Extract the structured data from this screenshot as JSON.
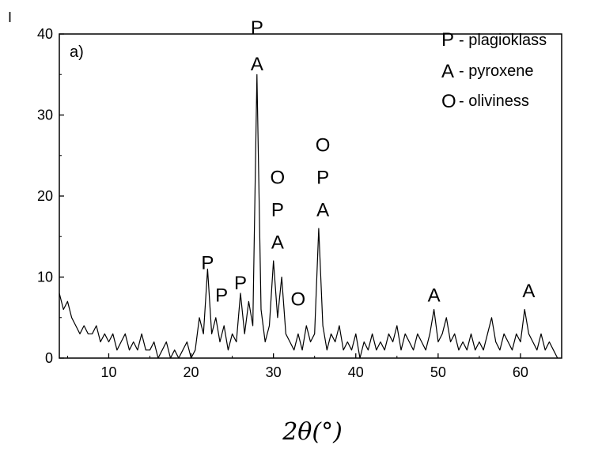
{
  "chart_data": {
    "type": "line",
    "panel_label": "a)",
    "ylabel": "I",
    "xlabel": "2θ(°)",
    "xlim": [
      4,
      65
    ],
    "ylim": [
      0,
      40
    ],
    "x_ticks": [
      10,
      20,
      30,
      40,
      50,
      60
    ],
    "y_ticks": [
      0,
      10,
      20,
      30,
      40
    ],
    "grid": false,
    "series_color": "#000000",
    "series": [
      {
        "x": [
          4.0,
          4.5,
          5.0,
          5.5,
          6.0,
          6.5,
          7.0,
          7.5,
          8.0,
          8.5,
          9.0,
          9.5,
          10.0,
          10.5,
          11.0,
          11.5,
          12.0,
          12.5,
          13.0,
          13.5,
          14.0,
          14.5,
          15.0,
          15.5,
          16.0,
          16.5,
          17.0,
          17.5,
          18.0,
          18.5,
          19.0,
          19.5,
          20.0,
          20.5,
          21.0,
          21.5,
          22.0,
          22.5,
          23.0,
          23.5,
          24.0,
          24.5,
          25.0,
          25.5,
          26.0,
          26.5,
          27.0,
          27.5,
          28.0,
          28.5,
          29.0,
          29.5,
          30.0,
          30.5,
          31.0,
          31.5,
          32.0,
          32.5,
          33.0,
          33.5,
          34.0,
          34.5,
          35.0,
          35.5,
          36.0,
          36.5,
          37.0,
          37.5,
          38.0,
          38.5,
          39.0,
          39.5,
          40.0,
          40.5,
          41.0,
          41.5,
          42.0,
          42.5,
          43.0,
          43.5,
          44.0,
          44.5,
          45.0,
          45.5,
          46.0,
          46.5,
          47.0,
          47.5,
          48.0,
          48.5,
          49.0,
          49.5,
          50.0,
          50.5,
          51.0,
          51.5,
          52.0,
          52.5,
          53.0,
          53.5,
          54.0,
          54.5,
          55.0,
          55.5,
          56.0,
          56.5,
          57.0,
          57.5,
          58.0,
          58.5,
          59.0,
          59.5,
          60.0,
          60.5,
          61.0,
          61.5,
          62.0,
          62.5,
          63.0,
          63.5,
          64.0,
          64.5
        ],
        "y": [
          8,
          6,
          7,
          5,
          4,
          3,
          4,
          3,
          3,
          4,
          2,
          3,
          2,
          3,
          1,
          2,
          3,
          1,
          2,
          1,
          3,
          1,
          1,
          2,
          0,
          1,
          2,
          0,
          1,
          0,
          1,
          2,
          0,
          1,
          5,
          3,
          11,
          3,
          5,
          2,
          4,
          1,
          3,
          2,
          8,
          3,
          7,
          4,
          35,
          6,
          2,
          4,
          12,
          5,
          10,
          3,
          2,
          1,
          3,
          1,
          4,
          2,
          3,
          16,
          4,
          1,
          3,
          2,
          4,
          1,
          2,
          1,
          3,
          0,
          2,
          1,
          3,
          1,
          2,
          1,
          3,
          2,
          4,
          1,
          3,
          2,
          1,
          3,
          2,
          1,
          3,
          6,
          2,
          3,
          5,
          2,
          3,
          1,
          2,
          1,
          3,
          1,
          2,
          1,
          3,
          5,
          2,
          1,
          3,
          2,
          1,
          3,
          2,
          6,
          3,
          2,
          1,
          3,
          1,
          2,
          1,
          0
        ]
      }
    ],
    "peak_labels": [
      {
        "x": 22.0,
        "y": 11,
        "text": "P"
      },
      {
        "x": 23.7,
        "y": 7,
        "text": "P"
      },
      {
        "x": 26.0,
        "y": 8.5,
        "text": "P"
      },
      {
        "x": 28.0,
        "y": 40,
        "text": "P"
      },
      {
        "x": 28.0,
        "y": 35.5,
        "text": "A"
      },
      {
        "x": 30.5,
        "y": 21.5,
        "text": "O"
      },
      {
        "x": 30.5,
        "y": 17.5,
        "text": "P"
      },
      {
        "x": 30.5,
        "y": 13.5,
        "text": "A"
      },
      {
        "x": 33.0,
        "y": 6.5,
        "text": "O"
      },
      {
        "x": 36.0,
        "y": 25.5,
        "text": "O"
      },
      {
        "x": 36.0,
        "y": 21.5,
        "text": "P"
      },
      {
        "x": 36.0,
        "y": 17.5,
        "text": "A"
      },
      {
        "x": 49.5,
        "y": 7,
        "text": "A"
      },
      {
        "x": 61.0,
        "y": 7.5,
        "text": "A"
      }
    ],
    "legend": [
      {
        "symbol": "P",
        "label": "- plagioklass"
      },
      {
        "symbol": "A",
        "label": "- pyroxene"
      },
      {
        "symbol": "O",
        "label": "- oliviness"
      }
    ],
    "legend_position": "top-right"
  }
}
